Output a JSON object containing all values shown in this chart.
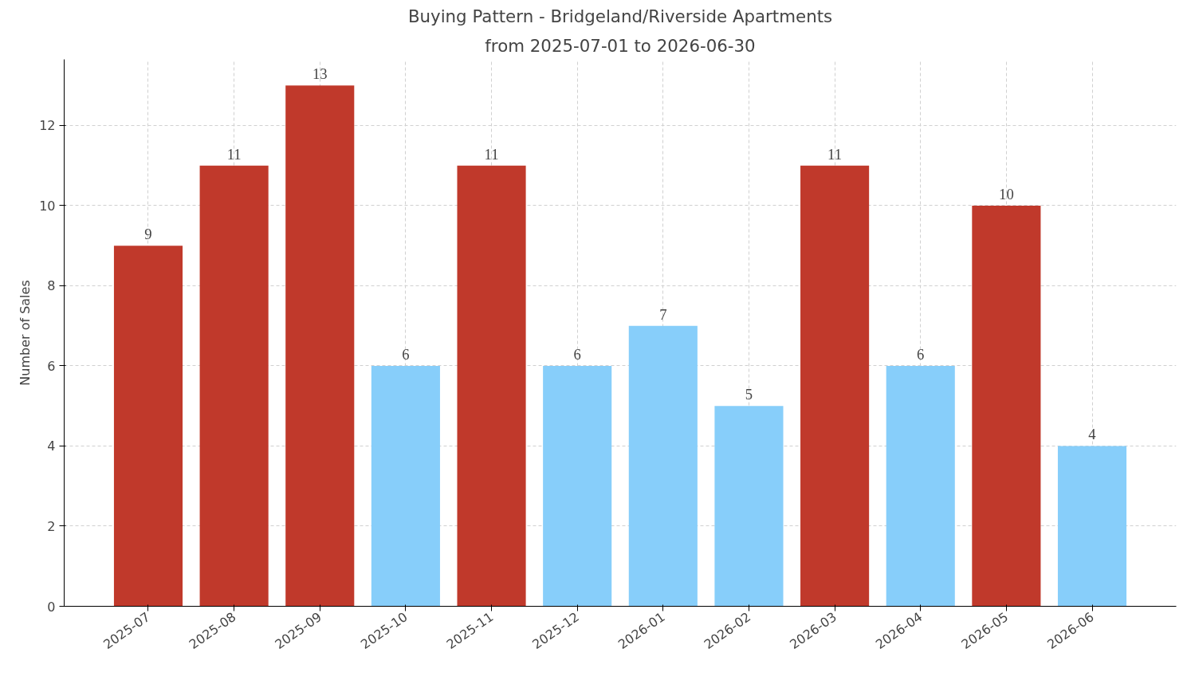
{
  "chart_data": {
    "type": "bar",
    "title": "Buying Pattern - Bridgeland/Riverside Apartments",
    "subtitle": "from 2025-07-01 to 2026-06-30",
    "ylabel": "Number of Sales",
    "categories": [
      "2025-07",
      "2025-08",
      "2025-09",
      "2025-10",
      "2025-11",
      "2025-12",
      "2026-01",
      "2026-02",
      "2026-03",
      "2026-04",
      "2026-05",
      "2026-06"
    ],
    "values": [
      9,
      11,
      13,
      6,
      11,
      6,
      7,
      5,
      11,
      6,
      10,
      4
    ],
    "colors": [
      "#c0392b",
      "#c0392b",
      "#c0392b",
      "#87cefa",
      "#c0392b",
      "#87cefa",
      "#87cefa",
      "#87cefa",
      "#c0392b",
      "#87cefa",
      "#c0392b",
      "#87cefa"
    ],
    "ylim": [
      0,
      13.65
    ],
    "yticks": [
      0,
      2,
      4,
      6,
      8,
      10,
      12
    ],
    "grid": true,
    "data_labels": true
  }
}
